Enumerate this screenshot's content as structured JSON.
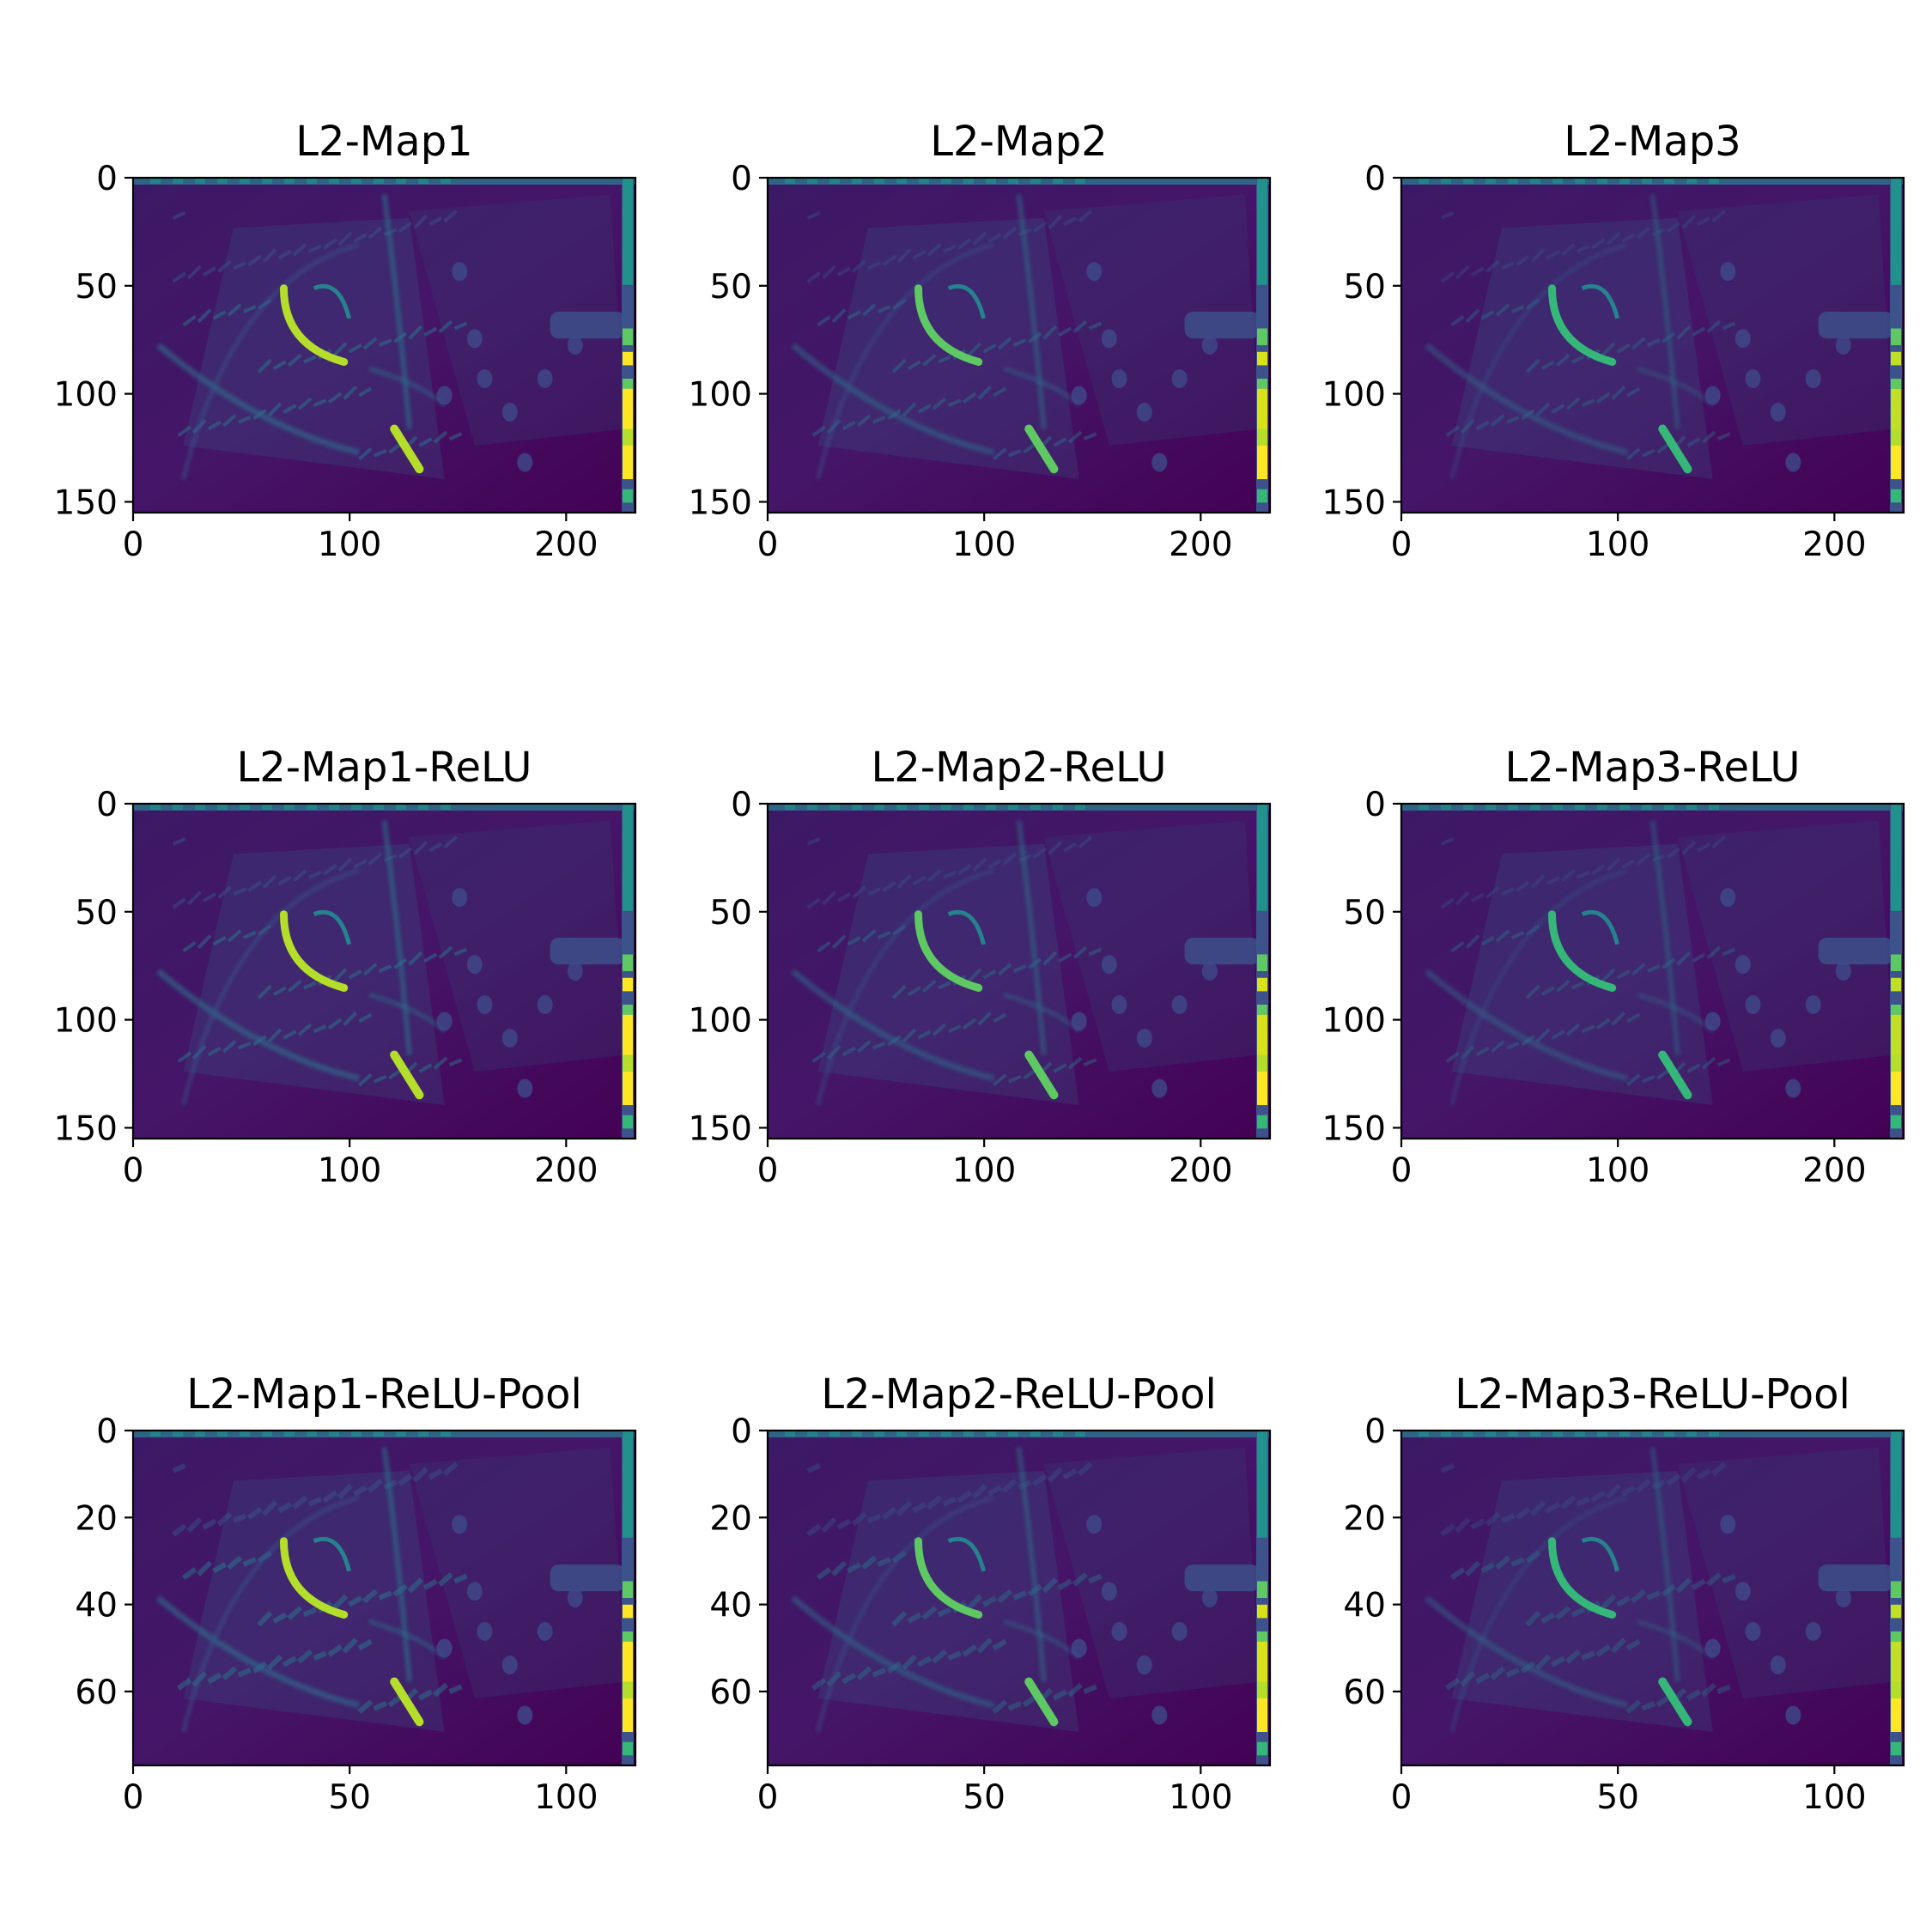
{
  "chart_data": [
    {
      "type": "heatmap",
      "title": "L2-Map1",
      "colormap": "viridis",
      "xlim": [
        0,
        232
      ],
      "ylim": [
        155,
        0
      ],
      "xticks": [
        0,
        100,
        200
      ],
      "yticks": [
        0,
        50,
        100,
        150
      ],
      "xtick_labels": [
        "0",
        "100",
        "200"
      ],
      "ytick_labels": [
        "0",
        "50",
        "100",
        "150"
      ],
      "intensity": 1.0
    },
    {
      "type": "heatmap",
      "title": "L2-Map2",
      "colormap": "viridis",
      "xlim": [
        0,
        232
      ],
      "ylim": [
        155,
        0
      ],
      "xticks": [
        0,
        100,
        200
      ],
      "yticks": [
        0,
        50,
        100,
        150
      ],
      "xtick_labels": [
        "0",
        "100",
        "200"
      ],
      "ytick_labels": [
        "0",
        "50",
        "100",
        "150"
      ],
      "intensity": 0.85
    },
    {
      "type": "heatmap",
      "title": "L2-Map3",
      "colormap": "viridis",
      "xlim": [
        0,
        232
      ],
      "ylim": [
        155,
        0
      ],
      "xticks": [
        0,
        100,
        200
      ],
      "yticks": [
        0,
        50,
        100,
        150
      ],
      "xtick_labels": [
        "0",
        "100",
        "200"
      ],
      "ytick_labels": [
        "0",
        "50",
        "100",
        "150"
      ],
      "intensity": 0.75
    },
    {
      "type": "heatmap",
      "title": "L2-Map1-ReLU",
      "colormap": "viridis",
      "xlim": [
        0,
        232
      ],
      "ylim": [
        155,
        0
      ],
      "xticks": [
        0,
        100,
        200
      ],
      "yticks": [
        0,
        50,
        100,
        150
      ],
      "xtick_labels": [
        "0",
        "100",
        "200"
      ],
      "ytick_labels": [
        "0",
        "50",
        "100",
        "150"
      ],
      "intensity": 1.0
    },
    {
      "type": "heatmap",
      "title": "L2-Map2-ReLU",
      "colormap": "viridis",
      "xlim": [
        0,
        232
      ],
      "ylim": [
        155,
        0
      ],
      "xticks": [
        0,
        100,
        200
      ],
      "yticks": [
        0,
        50,
        100,
        150
      ],
      "xtick_labels": [
        "0",
        "100",
        "200"
      ],
      "ytick_labels": [
        "0",
        "50",
        "100",
        "150"
      ],
      "intensity": 0.85
    },
    {
      "type": "heatmap",
      "title": "L2-Map3-ReLU",
      "colormap": "viridis",
      "xlim": [
        0,
        232
      ],
      "ylim": [
        155,
        0
      ],
      "xticks": [
        0,
        100,
        200
      ],
      "yticks": [
        0,
        50,
        100,
        150
      ],
      "xtick_labels": [
        "0",
        "100",
        "200"
      ],
      "ytick_labels": [
        "0",
        "50",
        "100",
        "150"
      ],
      "intensity": 0.75
    },
    {
      "type": "heatmap",
      "title": "L2-Map1-ReLU-Pool",
      "colormap": "viridis",
      "xlim": [
        0,
        116
      ],
      "ylim": [
        77,
        0
      ],
      "xticks": [
        0,
        50,
        100
      ],
      "yticks": [
        0,
        20,
        40,
        60
      ],
      "xtick_labels": [
        "0",
        "50",
        "100"
      ],
      "ytick_labels": [
        "0",
        "20",
        "40",
        "60"
      ],
      "intensity": 1.0
    },
    {
      "type": "heatmap",
      "title": "L2-Map2-ReLU-Pool",
      "colormap": "viridis",
      "xlim": [
        0,
        116
      ],
      "ylim": [
        77,
        0
      ],
      "xticks": [
        0,
        50,
        100
      ],
      "yticks": [
        0,
        20,
        40,
        60
      ],
      "xtick_labels": [
        "0",
        "50",
        "100"
      ],
      "ytick_labels": [
        "0",
        "20",
        "40",
        "60"
      ],
      "intensity": 0.85
    },
    {
      "type": "heatmap",
      "title": "L2-Map3-ReLU-Pool",
      "colormap": "viridis",
      "xlim": [
        0,
        116
      ],
      "ylim": [
        77,
        0
      ],
      "xticks": [
        0,
        50,
        100
      ],
      "yticks": [
        0,
        20,
        40,
        60
      ],
      "xtick_labels": [
        "0",
        "50",
        "100"
      ],
      "ytick_labels": [
        "0",
        "20",
        "40",
        "60"
      ],
      "intensity": 0.75
    }
  ],
  "colors": {
    "low": "#440154",
    "mid": "#21918c",
    "high": "#fde725"
  }
}
